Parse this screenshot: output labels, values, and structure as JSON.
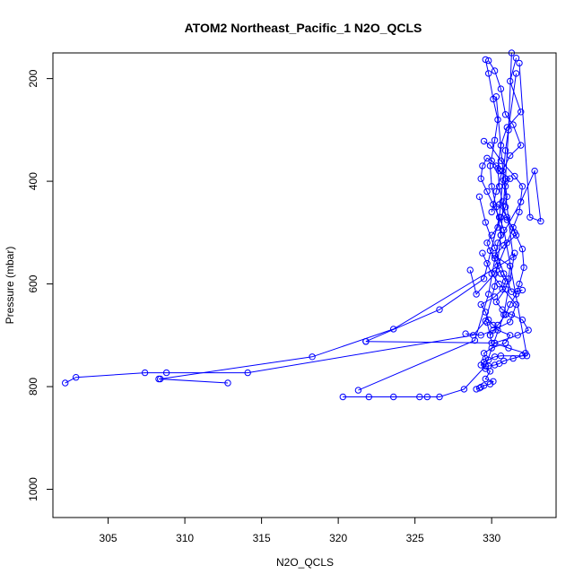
{
  "chart_data": {
    "type": "line",
    "title": "ATOM2 Northeast_Pacific_1 N2O_QCLS",
    "xlabel": "N2O_QCLS",
    "ylabel": "Pressure (mbar)",
    "xlim": [
      301.4,
      334.2
    ],
    "ylim": [
      1055,
      150
    ],
    "y_reversed": true,
    "x_ticks": [
      305,
      310,
      315,
      320,
      325,
      330
    ],
    "y_ticks": [
      200,
      400,
      600,
      800,
      1000
    ],
    "grid": false,
    "series_color": "#0000ff",
    "marker": "open-circle",
    "series": [
      {
        "x": [
          331.6,
          331.2,
          331.9,
          331.0,
          330.6,
          330.4,
          330.5,
          330.7,
          331.0,
          331.4,
          331.6,
          330.8,
          330.2,
          331.2,
          331.1,
          330.9,
          330.3,
          330.7,
          331.3,
          332.0,
          332.4,
          331.7,
          330.2,
          331.1,
          332.2,
          332.0,
          331.4,
          330.8,
          330.5,
          330.2,
          329.8,
          329.6,
          329.5,
          330.0,
          330.9,
          331.2,
          330.4,
          330.1,
          329.8,
          329.6,
          329.3,
          330.2,
          330.7,
          330.9,
          330.6,
          330.4,
          330.2,
          329.9,
          329.7,
          330.0,
          330.4,
          330.6,
          330.9,
          331.0,
          330.9,
          331.2,
          330.5,
          330.3,
          330.0,
          329.7,
          329.4,
          329.3,
          329.7,
          330.1,
          330.5,
          330.8,
          332.3,
          330.6,
          330.2,
          329.8,
          329.5,
          329.3,
          329.6,
          329.9,
          329.6,
          330.1,
          329.9,
          329.5,
          329.3,
          329.2,
          329.0
        ],
        "y": [
          160,
          205,
          265,
          295,
          330,
          375,
          410,
          440,
          475,
          490,
          505,
          525,
          545,
          565,
          590,
          610,
          635,
          650,
          660,
          670,
          690,
          700,
          715,
          725,
          735,
          740,
          745,
          750,
          755,
          758,
          760,
          745,
          735,
          725,
          715,
          700,
          690,
          680,
          670,
          655,
          640,
          625,
          610,
          595,
          580,
          565,
          550,
          535,
          520,
          505,
          490,
          470,
          450,
          430,
          410,
          395,
          380,
          370,
          360,
          355,
          370,
          395,
          420,
          445,
          470,
          495,
          740,
          740,
          742,
          748,
          752,
          758,
          765,
          770,
          785,
          790,
          795,
          798,
          801,
          803,
          805
        ]
      },
      {
        "x": [
          302.2,
          302.9,
          307.4,
          308.8,
          314.1,
          328.8,
          329.6,
          330.2,
          330.6,
          330.9,
          331.1,
          331.3
        ],
        "y": [
          793,
          782,
          773,
          773,
          773,
          700,
          672,
          605,
          505,
          395,
          300,
          150
        ]
      },
      {
        "x": [
          308.3,
          312.8,
          308.4,
          318.3,
          323.6,
          331.4,
          330.8,
          330.3
        ],
        "y": [
          785,
          793,
          785,
          742,
          688,
          548,
          398,
          235
        ]
      },
      {
        "x": [
          321.8,
          326.6,
          329.5,
          330.5,
          330.9,
          331.6
        ],
        "y": [
          712,
          650,
          590,
          470,
          340,
          190
        ]
      },
      {
        "x": [
          321.8,
          330.0,
          329.9,
          329.7
        ],
        "y": [
          712,
          715,
          700,
          675
        ]
      },
      {
        "x": [
          320.3,
          322.0,
          323.6,
          325.3,
          325.8,
          326.6,
          328.2,
          329.6,
          330.8,
          331.5
        ],
        "y": [
          820,
          820,
          820,
          820,
          820,
          820,
          805,
          760,
          660,
          540
        ]
      },
      {
        "x": [
          321.3,
          328.9,
          329.8,
          330.4,
          331.9,
          332.8,
          333.2,
          332.5,
          331.8
        ],
        "y": [
          807,
          710,
          620,
          520,
          440,
          380,
          478,
          470,
          170
        ]
      },
      {
        "x": [
          328.3,
          329.3,
          330.1,
          331.2,
          331.6,
          330.5,
          330.0,
          329.7,
          329.4
        ],
        "y": [
          697,
          700,
          690,
          674,
          640,
          600,
          580,
          560,
          540
        ]
      },
      {
        "x": [
          328.6,
          329.0,
          330.2,
          331.0,
          331.8,
          332.0,
          331.5,
          330.6,
          329.9,
          329.5
        ],
        "y": [
          573,
          620,
          580,
          520,
          460,
          410,
          390,
          360,
          330,
          322
        ]
      },
      {
        "x": [
          329.6,
          329.8,
          330.1,
          330.4,
          330.2,
          329.9,
          330.0,
          330.3,
          330.6
        ],
        "y": [
          163,
          190,
          240,
          280,
          320,
          370,
          410,
          450,
          505
        ]
      },
      {
        "x": [
          329.8,
          330.2,
          330.6,
          330.9,
          331.4,
          331.9,
          331.2,
          330.7,
          330.3,
          330.0
        ],
        "y": [
          165,
          185,
          220,
          270,
          290,
          330,
          350,
          380,
          420,
          460
        ]
      },
      {
        "x": [
          329.9,
          330.4,
          330.9,
          331.2,
          331.6,
          331.8,
          332.1,
          332.0,
          331.5,
          331.0,
          330.5
        ],
        "y": [
          700,
          680,
          660,
          640,
          620,
          600,
          568,
          532,
          500,
          470,
          445
        ]
      },
      {
        "x": [
          329.2,
          329.6,
          330.2,
          330.8,
          331.3,
          331.7,
          332.0
        ],
        "y": [
          430,
          480,
          530,
          580,
          615,
          614,
          612
        ]
      }
    ]
  }
}
